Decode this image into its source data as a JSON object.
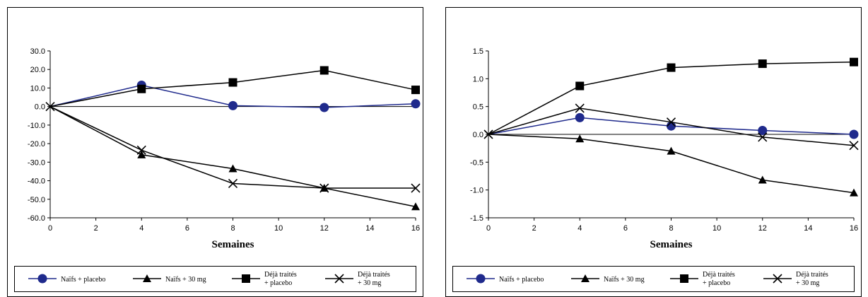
{
  "chart_data": [
    {
      "type": "line",
      "xlabel": "Semaines",
      "ylabel": "",
      "xlim": [
        0,
        16
      ],
      "ylim": [
        -60,
        30
      ],
      "xticks": [
        0,
        2,
        4,
        6,
        8,
        10,
        12,
        14,
        16
      ],
      "xtick_labels": [
        "0",
        "2",
        "4",
        "6",
        "8",
        "10",
        "12",
        "14",
        "16"
      ],
      "yticks": [
        30,
        20,
        10,
        0,
        -10,
        -20,
        -30,
        -40,
        -50,
        -60
      ],
      "ytick_labels": [
        "30.0",
        "20.0",
        "10.0",
        "0.0",
        "-10.0",
        "-20.0",
        "-30.0",
        "-40.0",
        "-50.0",
        "-60.0"
      ],
      "grid": false,
      "legend_position": "bottom",
      "x": [
        0,
        4,
        8,
        12,
        16
      ],
      "series": [
        {
          "name": "Naïfs + placebo",
          "marker": "circle",
          "color": "#1f2a8c",
          "values": [
            0,
            11.5,
            0.5,
            -0.5,
            1.5
          ]
        },
        {
          "name": "Naïfs + 30 mg",
          "marker": "triangle",
          "color": "#000000",
          "values": [
            0,
            -26,
            -33.5,
            -44,
            -54
          ]
        },
        {
          "name": "Déjà traités + placebo",
          "name_lines": [
            "Déjà traités",
            "+ placebo"
          ],
          "marker": "square",
          "color": "#000000",
          "values": [
            0,
            9.5,
            13,
            19.5,
            9
          ]
        },
        {
          "name": "Déjà traités + 30 mg",
          "name_lines": [
            "Déjà traités",
            "+ 30 mg"
          ],
          "marker": "x",
          "color": "#000000",
          "values": [
            0,
            -23.5,
            -41.5,
            -44,
            -44
          ]
        }
      ]
    },
    {
      "type": "line",
      "xlabel": "Semaines",
      "ylabel": "",
      "xlim": [
        0,
        16
      ],
      "ylim": [
        -1.5,
        1.5
      ],
      "xticks": [
        0,
        2,
        4,
        6,
        8,
        10,
        12,
        14,
        16
      ],
      "xtick_labels": [
        "0",
        "2",
        "4",
        "6",
        "8",
        "10",
        "12",
        "14",
        "16"
      ],
      "yticks": [
        1.5,
        1.0,
        0.5,
        0.0,
        -0.5,
        -1.0,
        -1.5
      ],
      "ytick_labels": [
        "1.5",
        "1.0",
        "0.5",
        "0.0",
        "-0.5",
        "-1.0",
        "-1.5"
      ],
      "grid": false,
      "legend_position": "bottom",
      "x": [
        0,
        4,
        8,
        12,
        16
      ],
      "series": [
        {
          "name": "Naïfs + placebo",
          "marker": "circle",
          "color": "#1f2a8c",
          "values": [
            0,
            0.3,
            0.15,
            0.07,
            0.0
          ]
        },
        {
          "name": "Naïfs + 30 mg",
          "marker": "triangle",
          "color": "#000000",
          "values": [
            0,
            -0.08,
            -0.3,
            -0.82,
            -1.05
          ]
        },
        {
          "name": "Déjà traités + placebo",
          "name_lines": [
            "Déjà traités",
            "+ placebo"
          ],
          "marker": "square",
          "color": "#000000",
          "values": [
            0,
            0.87,
            1.2,
            1.27,
            1.3
          ]
        },
        {
          "name": "Déjà traités + 30 mg",
          "name_lines": [
            "Déjà traités",
            "+ 30 mg"
          ],
          "marker": "x",
          "color": "#000000",
          "values": [
            0,
            0.47,
            0.22,
            -0.05,
            -0.2
          ]
        }
      ]
    }
  ]
}
